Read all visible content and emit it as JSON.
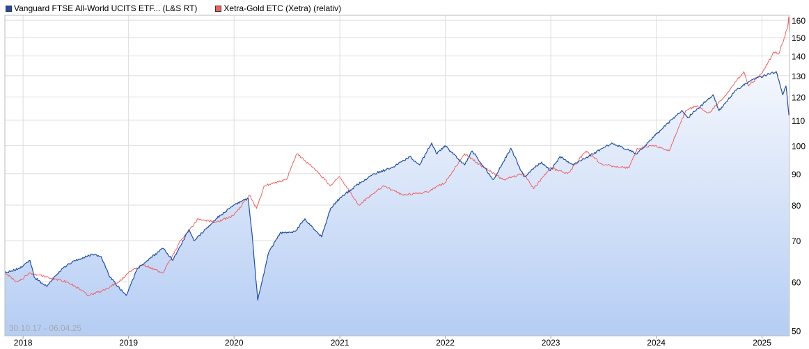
{
  "legend": {
    "series1": {
      "label": "Vanguard FTSE All-World UCITS ETF... (L&S RT)",
      "color": "#1f4ea8"
    },
    "series2": {
      "label": "Xetra-Gold ETC (Xetra) (relativ)",
      "color": "#f06060"
    }
  },
  "date_range": "30.10.17 - 06.04.25",
  "chart_data": {
    "type": "line",
    "x_start": "2017-10-30",
    "x_end": "2025-04-06",
    "y_scale": "log",
    "ylim": [
      49,
      163
    ],
    "y_ticks": [
      50,
      60,
      70,
      80,
      90,
      100,
      110,
      120,
      130,
      140,
      150,
      160
    ],
    "x_ticks": [
      {
        "label": "2018",
        "date": "2018-01-01"
      },
      {
        "label": "2019",
        "date": "2019-01-01"
      },
      {
        "label": "2020",
        "date": "2020-01-01"
      },
      {
        "label": "2021",
        "date": "2021-01-01"
      },
      {
        "label": "2022",
        "date": "2022-01-01"
      },
      {
        "label": "2023",
        "date": "2023-01-01"
      },
      {
        "label": "2024",
        "date": "2024-01-01"
      },
      {
        "label": "2025",
        "date": "2025-01-01"
      }
    ],
    "grid": true,
    "legend_position": "top-left",
    "series": [
      {
        "name": "Vanguard FTSE All-World UCITS ETF... (L&S RT)",
        "color": "#1f4ea8",
        "area_fill": true,
        "points": [
          [
            "2017-10-30",
            62
          ],
          [
            "2017-12-15",
            63
          ],
          [
            "2018-01-25",
            65
          ],
          [
            "2018-02-09",
            61
          ],
          [
            "2018-03-23",
            59
          ],
          [
            "2018-05-15",
            63
          ],
          [
            "2018-06-29",
            65
          ],
          [
            "2018-08-30",
            66.5
          ],
          [
            "2018-09-28",
            66
          ],
          [
            "2018-10-29",
            61
          ],
          [
            "2018-12-24",
            57
          ],
          [
            "2019-01-31",
            63
          ],
          [
            "2019-04-30",
            68
          ],
          [
            "2019-06-03",
            65
          ],
          [
            "2019-07-29",
            73
          ],
          [
            "2019-08-15",
            70
          ],
          [
            "2019-10-31",
            76
          ],
          [
            "2019-12-31",
            80
          ],
          [
            "2020-02-19",
            82
          ],
          [
            "2020-03-03",
            72
          ],
          [
            "2020-03-23",
            56
          ],
          [
            "2020-04-30",
            67
          ],
          [
            "2020-06-08",
            72
          ],
          [
            "2020-07-31",
            72.5
          ],
          [
            "2020-09-02",
            76
          ],
          [
            "2020-10-30",
            71
          ],
          [
            "2020-11-30",
            79
          ],
          [
            "2020-12-31",
            82
          ],
          [
            "2021-02-26",
            86
          ],
          [
            "2021-04-30",
            90
          ],
          [
            "2021-06-30",
            92
          ],
          [
            "2021-08-31",
            96
          ],
          [
            "2021-10-04",
            93
          ],
          [
            "2021-11-15",
            101
          ],
          [
            "2021-12-01",
            97
          ],
          [
            "2021-12-31",
            100
          ],
          [
            "2022-03-08",
            93
          ],
          [
            "2022-04-04",
            98
          ],
          [
            "2022-06-16",
            88
          ],
          [
            "2022-08-16",
            99
          ],
          [
            "2022-09-30",
            89
          ],
          [
            "2022-11-30",
            94
          ],
          [
            "2022-12-30",
            91
          ],
          [
            "2023-02-02",
            96
          ],
          [
            "2023-03-20",
            93
          ],
          [
            "2023-06-30",
            99
          ],
          [
            "2023-07-31",
            101
          ],
          [
            "2023-10-27",
            97
          ],
          [
            "2023-12-29",
            104
          ],
          [
            "2024-03-28",
            114
          ],
          [
            "2024-04-19",
            111
          ],
          [
            "2024-07-16",
            121
          ],
          [
            "2024-08-05",
            114
          ],
          [
            "2024-09-30",
            123
          ],
          [
            "2024-11-29",
            128
          ],
          [
            "2025-01-31",
            131
          ],
          [
            "2025-02-19",
            132
          ],
          [
            "2025-03-13",
            121
          ],
          [
            "2025-03-25",
            125
          ],
          [
            "2025-04-04",
            112
          ]
        ]
      },
      {
        "name": "Xetra-Gold ETC (Xetra) (relativ)",
        "color": "#f06060",
        "area_fill": false,
        "points": [
          [
            "2017-10-30",
            62
          ],
          [
            "2017-12-12",
            60
          ],
          [
            "2018-01-25",
            62
          ],
          [
            "2018-03-30",
            61
          ],
          [
            "2018-05-31",
            60
          ],
          [
            "2018-06-30",
            59
          ],
          [
            "2018-08-16",
            57
          ],
          [
            "2018-09-30",
            58
          ],
          [
            "2018-11-30",
            60
          ],
          [
            "2018-12-31",
            62
          ],
          [
            "2019-02-20",
            64
          ],
          [
            "2019-04-30",
            62
          ],
          [
            "2019-06-30",
            70
          ],
          [
            "2019-08-30",
            76
          ],
          [
            "2019-10-31",
            75
          ],
          [
            "2019-12-31",
            77
          ],
          [
            "2020-02-24",
            83
          ],
          [
            "2020-03-19",
            79
          ],
          [
            "2020-04-14",
            86
          ],
          [
            "2020-06-30",
            88
          ],
          [
            "2020-08-06",
            97
          ],
          [
            "2020-09-30",
            92
          ],
          [
            "2020-11-30",
            86
          ],
          [
            "2020-12-31",
            89
          ],
          [
            "2021-03-08",
            80
          ],
          [
            "2021-05-31",
            86
          ],
          [
            "2021-08-09",
            83
          ],
          [
            "2021-10-29",
            84
          ],
          [
            "2021-12-31",
            87
          ],
          [
            "2022-03-08",
            97
          ],
          [
            "2022-05-16",
            92
          ],
          [
            "2022-07-20",
            88
          ],
          [
            "2022-09-28",
            90
          ],
          [
            "2022-11-03",
            85
          ],
          [
            "2022-12-30",
            92
          ],
          [
            "2023-02-28",
            90
          ],
          [
            "2023-05-03",
            98
          ],
          [
            "2023-06-30",
            93
          ],
          [
            "2023-09-29",
            92
          ],
          [
            "2023-10-27",
            99
          ],
          [
            "2023-12-29",
            100
          ],
          [
            "2024-02-14",
            98
          ],
          [
            "2024-04-12",
            114
          ],
          [
            "2024-05-20",
            116
          ],
          [
            "2024-06-30",
            113
          ],
          [
            "2024-08-16",
            119
          ],
          [
            "2024-10-30",
            132
          ],
          [
            "2024-11-14",
            125
          ],
          [
            "2024-12-31",
            131
          ],
          [
            "2025-02-11",
            142
          ],
          [
            "2025-02-28",
            141
          ],
          [
            "2025-03-31",
            156
          ],
          [
            "2025-04-03",
            162
          ],
          [
            "2025-04-06",
            152
          ]
        ]
      }
    ]
  }
}
